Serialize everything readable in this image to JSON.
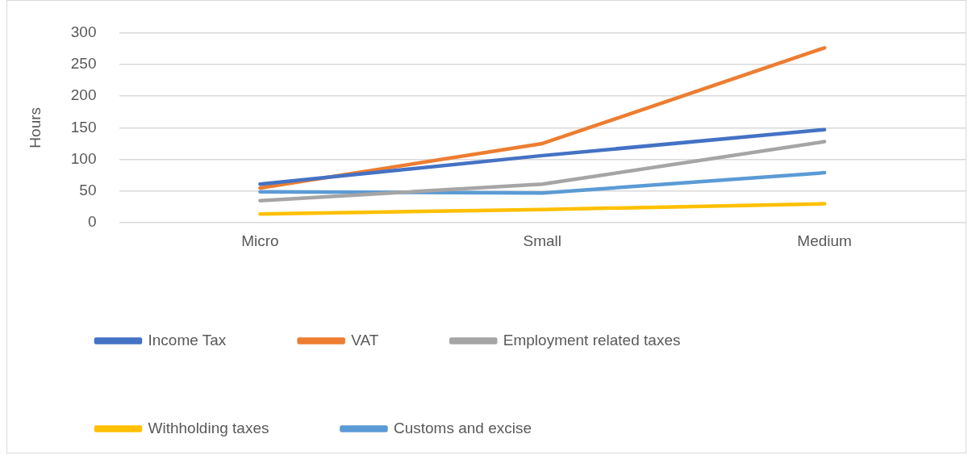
{
  "chart_data": {
    "type": "line",
    "ylabel": "Hours",
    "categories": [
      "Micro",
      "Small",
      "Medium"
    ],
    "series": [
      {
        "name": "Income Tax",
        "color": "#4472c4",
        "values": [
          61,
          106,
          147
        ]
      },
      {
        "name": "VAT",
        "color": "#ed7d31",
        "values": [
          55,
          125,
          276
        ]
      },
      {
        "name": "Employment related taxes",
        "color": "#a5a5a5",
        "values": [
          35,
          61,
          128
        ]
      },
      {
        "name": "Withholding taxes",
        "color": "#ffc000",
        "values": [
          14,
          21,
          30
        ]
      },
      {
        "name": "Customs and excise",
        "color": "#5b9bd5",
        "values": [
          49,
          47,
          79
        ]
      }
    ],
    "ylim": [
      0,
      300
    ],
    "yticks": [
      0,
      50,
      100,
      150,
      200,
      250,
      300
    ],
    "grid": "y",
    "legend": "bottom",
    "marker": "none",
    "line_style": "solid"
  }
}
